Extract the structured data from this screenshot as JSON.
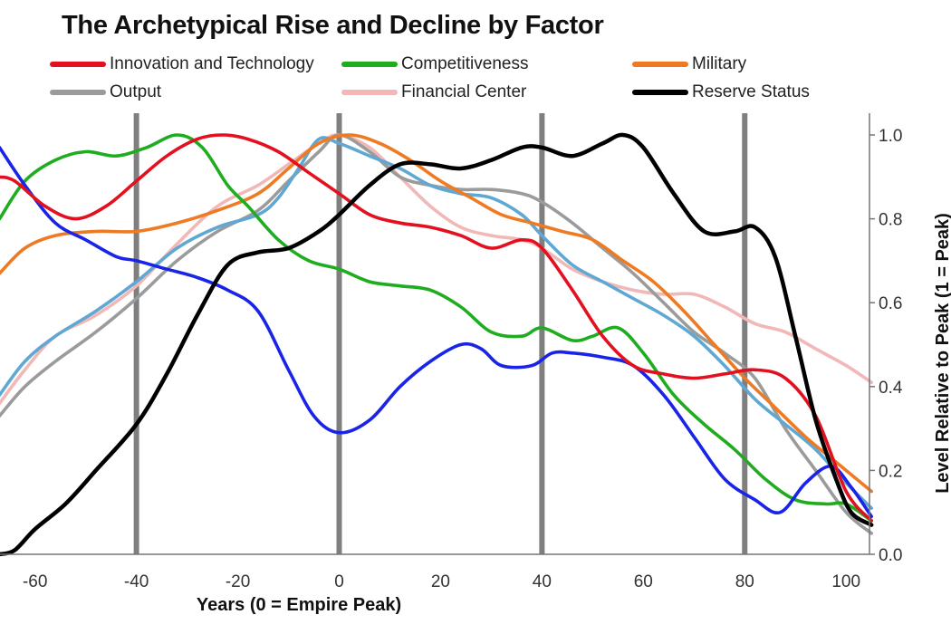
{
  "chart_data": {
    "type": "line",
    "title": "The Archetypical Rise and Decline by Factor",
    "xlabel": "Years (0 = Empire Peak)",
    "ylabel": "Level Relative to Peak (1 = Peak)",
    "xlim": [
      -67,
      105
    ],
    "ylim": [
      0,
      1.05
    ],
    "x_ticks": [
      -60,
      -40,
      -20,
      0,
      20,
      40,
      60,
      80,
      100
    ],
    "y_ticks": [
      0.0,
      0.2,
      0.4,
      0.6,
      0.8,
      1.0
    ],
    "x_tick_labels": [
      "-60",
      "-40",
      "-20",
      "0",
      "20",
      "40",
      "60",
      "80",
      "100"
    ],
    "y_tick_labels": [
      "0.0",
      "0.2",
      "0.4",
      "0.6",
      "0.8",
      "1.0"
    ],
    "vertical_lines": [
      -40,
      0,
      40,
      80
    ],
    "grid": false,
    "legend_position": "top",
    "series": [
      {
        "name": "Innovation and Technology",
        "color": "#e3101f",
        "points": [
          [
            -67,
            0.9
          ],
          [
            -64,
            0.89
          ],
          [
            -58,
            0.83
          ],
          [
            -52,
            0.8
          ],
          [
            -46,
            0.83
          ],
          [
            -40,
            0.89
          ],
          [
            -34,
            0.95
          ],
          [
            -28,
            0.99
          ],
          [
            -23,
            1.0
          ],
          [
            -18,
            0.99
          ],
          [
            -12,
            0.96
          ],
          [
            -6,
            0.91
          ],
          [
            0,
            0.86
          ],
          [
            6,
            0.81
          ],
          [
            12,
            0.79
          ],
          [
            18,
            0.78
          ],
          [
            24,
            0.76
          ],
          [
            30,
            0.73
          ],
          [
            36,
            0.75
          ],
          [
            40,
            0.73
          ],
          [
            46,
            0.63
          ],
          [
            52,
            0.52
          ],
          [
            58,
            0.45
          ],
          [
            64,
            0.43
          ],
          [
            70,
            0.42
          ],
          [
            76,
            0.43
          ],
          [
            82,
            0.44
          ],
          [
            88,
            0.42
          ],
          [
            94,
            0.33
          ],
          [
            100,
            0.15
          ],
          [
            105,
            0.08
          ]
        ]
      },
      {
        "name": "Competitiveness",
        "color": "#1fad1f",
        "points": [
          [
            -67,
            0.8
          ],
          [
            -62,
            0.89
          ],
          [
            -56,
            0.94
          ],
          [
            -50,
            0.96
          ],
          [
            -44,
            0.95
          ],
          [
            -38,
            0.97
          ],
          [
            -32,
            1.0
          ],
          [
            -27,
            0.97
          ],
          [
            -22,
            0.88
          ],
          [
            -18,
            0.83
          ],
          [
            -12,
            0.75
          ],
          [
            -6,
            0.7
          ],
          [
            0,
            0.68
          ],
          [
            6,
            0.65
          ],
          [
            12,
            0.64
          ],
          [
            18,
            0.63
          ],
          [
            24,
            0.59
          ],
          [
            30,
            0.53
          ],
          [
            36,
            0.52
          ],
          [
            40,
            0.54
          ],
          [
            46,
            0.51
          ],
          [
            50,
            0.52
          ],
          [
            55,
            0.54
          ],
          [
            60,
            0.48
          ],
          [
            66,
            0.38
          ],
          [
            72,
            0.31
          ],
          [
            78,
            0.25
          ],
          [
            84,
            0.18
          ],
          [
            90,
            0.13
          ],
          [
            96,
            0.12
          ],
          [
            100,
            0.12
          ],
          [
            105,
            0.08
          ]
        ]
      },
      {
        "name": "Military",
        "color": "#ee7a23",
        "points": [
          [
            -67,
            0.67
          ],
          [
            -62,
            0.73
          ],
          [
            -56,
            0.76
          ],
          [
            -48,
            0.77
          ],
          [
            -40,
            0.77
          ],
          [
            -32,
            0.79
          ],
          [
            -24,
            0.82
          ],
          [
            -16,
            0.86
          ],
          [
            -10,
            0.92
          ],
          [
            -4,
            0.98
          ],
          [
            2,
            1.0
          ],
          [
            8,
            0.98
          ],
          [
            14,
            0.94
          ],
          [
            20,
            0.89
          ],
          [
            26,
            0.85
          ],
          [
            32,
            0.81
          ],
          [
            38,
            0.79
          ],
          [
            44,
            0.77
          ],
          [
            50,
            0.75
          ],
          [
            56,
            0.7
          ],
          [
            62,
            0.65
          ],
          [
            68,
            0.58
          ],
          [
            74,
            0.5
          ],
          [
            80,
            0.42
          ],
          [
            86,
            0.35
          ],
          [
            92,
            0.28
          ],
          [
            98,
            0.22
          ],
          [
            105,
            0.15
          ]
        ]
      },
      {
        "name": "Output",
        "color": "#9b9b9b",
        "points": [
          [
            -67,
            0.33
          ],
          [
            -62,
            0.4
          ],
          [
            -56,
            0.46
          ],
          [
            -48,
            0.53
          ],
          [
            -40,
            0.61
          ],
          [
            -32,
            0.7
          ],
          [
            -24,
            0.77
          ],
          [
            -16,
            0.82
          ],
          [
            -10,
            0.89
          ],
          [
            -4,
            0.96
          ],
          [
            0,
            1.0
          ],
          [
            6,
            0.96
          ],
          [
            12,
            0.9
          ],
          [
            18,
            0.88
          ],
          [
            24,
            0.87
          ],
          [
            30,
            0.87
          ],
          [
            36,
            0.86
          ],
          [
            40,
            0.84
          ],
          [
            46,
            0.79
          ],
          [
            52,
            0.73
          ],
          [
            58,
            0.67
          ],
          [
            64,
            0.6
          ],
          [
            70,
            0.53
          ],
          [
            76,
            0.48
          ],
          [
            82,
            0.42
          ],
          [
            88,
            0.3
          ],
          [
            94,
            0.2
          ],
          [
            100,
            0.1
          ],
          [
            105,
            0.05
          ]
        ]
      },
      {
        "name": "Financial Center",
        "color": "#f2b7b7",
        "points": [
          [
            -67,
            0.36
          ],
          [
            -62,
            0.44
          ],
          [
            -56,
            0.52
          ],
          [
            -48,
            0.57
          ],
          [
            -40,
            0.64
          ],
          [
            -32,
            0.74
          ],
          [
            -24,
            0.83
          ],
          [
            -16,
            0.88
          ],
          [
            -10,
            0.93
          ],
          [
            -4,
            0.98
          ],
          [
            0,
            1.0
          ],
          [
            6,
            0.97
          ],
          [
            12,
            0.9
          ],
          [
            18,
            0.83
          ],
          [
            24,
            0.78
          ],
          [
            30,
            0.76
          ],
          [
            36,
            0.75
          ],
          [
            40,
            0.73
          ],
          [
            46,
            0.68
          ],
          [
            52,
            0.65
          ],
          [
            58,
            0.63
          ],
          [
            64,
            0.62
          ],
          [
            70,
            0.62
          ],
          [
            76,
            0.59
          ],
          [
            82,
            0.55
          ],
          [
            88,
            0.53
          ],
          [
            94,
            0.49
          ],
          [
            100,
            0.45
          ],
          [
            105,
            0.41
          ]
        ]
      },
      {
        "name": "Reserve Status",
        "color": "#000000",
        "points": [
          [
            -67,
            0.0
          ],
          [
            -64,
            0.01
          ],
          [
            -60,
            0.06
          ],
          [
            -54,
            0.12
          ],
          [
            -48,
            0.2
          ],
          [
            -40,
            0.31
          ],
          [
            -34,
            0.43
          ],
          [
            -28,
            0.57
          ],
          [
            -22,
            0.69
          ],
          [
            -16,
            0.72
          ],
          [
            -10,
            0.73
          ],
          [
            -4,
            0.77
          ],
          [
            0,
            0.81
          ],
          [
            6,
            0.88
          ],
          [
            12,
            0.93
          ],
          [
            18,
            0.93
          ],
          [
            24,
            0.92
          ],
          [
            30,
            0.94
          ],
          [
            36,
            0.97
          ],
          [
            40,
            0.97
          ],
          [
            46,
            0.95
          ],
          [
            52,
            0.98
          ],
          [
            56,
            1.0
          ],
          [
            60,
            0.97
          ],
          [
            66,
            0.86
          ],
          [
            72,
            0.77
          ],
          [
            78,
            0.77
          ],
          [
            82,
            0.78
          ],
          [
            86,
            0.71
          ],
          [
            90,
            0.52
          ],
          [
            94,
            0.32
          ],
          [
            98,
            0.18
          ],
          [
            101,
            0.1
          ],
          [
            105,
            0.07
          ]
        ]
      },
      {
        "name": "",
        "color": "#1a24e6",
        "points": [
          [
            -67,
            0.97
          ],
          [
            -62,
            0.88
          ],
          [
            -56,
            0.79
          ],
          [
            -50,
            0.75
          ],
          [
            -44,
            0.71
          ],
          [
            -40,
            0.7
          ],
          [
            -34,
            0.68
          ],
          [
            -28,
            0.66
          ],
          [
            -22,
            0.63
          ],
          [
            -16,
            0.58
          ],
          [
            -10,
            0.44
          ],
          [
            -5,
            0.33
          ],
          [
            0,
            0.29
          ],
          [
            6,
            0.32
          ],
          [
            12,
            0.4
          ],
          [
            18,
            0.46
          ],
          [
            24,
            0.5
          ],
          [
            28,
            0.49
          ],
          [
            32,
            0.45
          ],
          [
            38,
            0.45
          ],
          [
            42,
            0.48
          ],
          [
            46,
            0.48
          ],
          [
            52,
            0.47
          ],
          [
            58,
            0.45
          ],
          [
            64,
            0.38
          ],
          [
            70,
            0.28
          ],
          [
            76,
            0.18
          ],
          [
            82,
            0.13
          ],
          [
            87,
            0.1
          ],
          [
            92,
            0.17
          ],
          [
            97,
            0.21
          ],
          [
            101,
            0.16
          ],
          [
            105,
            0.09
          ]
        ]
      },
      {
        "name": "",
        "color": "#5fa8d3",
        "points": [
          [
            -67,
            0.38
          ],
          [
            -62,
            0.46
          ],
          [
            -56,
            0.52
          ],
          [
            -48,
            0.58
          ],
          [
            -40,
            0.65
          ],
          [
            -32,
            0.73
          ],
          [
            -24,
            0.78
          ],
          [
            -16,
            0.81
          ],
          [
            -12,
            0.85
          ],
          [
            -8,
            0.92
          ],
          [
            -4,
            0.99
          ],
          [
            0,
            0.98
          ],
          [
            6,
            0.95
          ],
          [
            12,
            0.92
          ],
          [
            18,
            0.88
          ],
          [
            24,
            0.86
          ],
          [
            30,
            0.85
          ],
          [
            36,
            0.81
          ],
          [
            40,
            0.76
          ],
          [
            46,
            0.69
          ],
          [
            52,
            0.65
          ],
          [
            58,
            0.61
          ],
          [
            64,
            0.57
          ],
          [
            70,
            0.52
          ],
          [
            76,
            0.45
          ],
          [
            82,
            0.37
          ],
          [
            88,
            0.31
          ],
          [
            94,
            0.25
          ],
          [
            100,
            0.17
          ],
          [
            105,
            0.11
          ]
        ]
      }
    ]
  }
}
